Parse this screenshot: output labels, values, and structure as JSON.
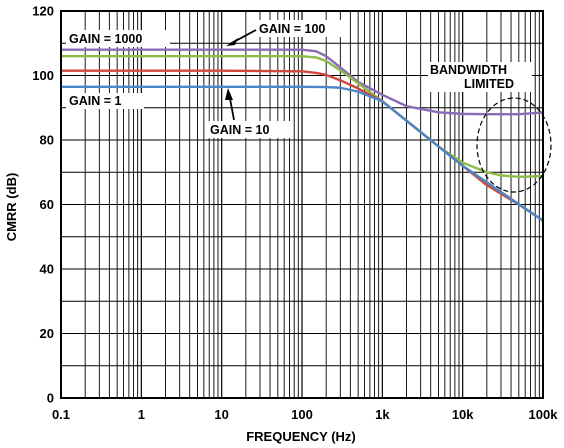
{
  "chart_data": {
    "type": "line",
    "xscale": "log",
    "xlabel": "FREQUENCY (Hz)",
    "ylabel": "CMRR (dB)",
    "xlim": [
      0.1,
      100000
    ],
    "ylim": [
      0,
      120
    ],
    "xticks": [
      "0.1",
      "1",
      "10",
      "100",
      "1k",
      "10k",
      "100k"
    ],
    "yticks": [
      "0",
      "20",
      "40",
      "60",
      "80",
      "100",
      "120"
    ],
    "grid": true,
    "colors": {
      "gain_1000": "#8a6bb5",
      "gain_100": "#8dbb4a",
      "gain_10": "#d0473c",
      "gain_1": "#4a86c8"
    },
    "series": [
      {
        "name": "GAIN = 1000",
        "color": "#8a6bb5",
        "x": [
          0.1,
          1,
          10,
          100,
          150,
          200,
          300,
          500,
          1000,
          2000,
          5000,
          10000,
          20000,
          50000,
          100000
        ],
        "y": [
          108,
          108,
          108,
          108,
          107.5,
          106,
          102.5,
          98,
          94,
          90.5,
          88.6,
          88.1,
          88,
          88,
          88.5
        ]
      },
      {
        "name": "GAIN = 100",
        "color": "#8dbb4a",
        "x": [
          0.1,
          1,
          10,
          100,
          150,
          200,
          300,
          500,
          1000,
          2000,
          5000,
          10000,
          20000,
          30000,
          50000,
          100000
        ],
        "y": [
          106,
          106,
          106,
          106,
          105.6,
          104.5,
          101.6,
          97.6,
          92,
          86,
          78,
          73,
          70,
          69,
          68.6,
          68.8
        ]
      },
      {
        "name": "GAIN = 10",
        "color": "#d0473c",
        "x": [
          0.1,
          1,
          10,
          100,
          150,
          200,
          300,
          500,
          1000,
          2000,
          5000,
          10000,
          20000,
          50000,
          100000
        ],
        "y": [
          101.5,
          101.5,
          101.5,
          101.3,
          100.8,
          100.2,
          98.5,
          96,
          92,
          86,
          78,
          72,
          66,
          60,
          55
        ]
      },
      {
        "name": "GAIN = 1",
        "color": "#4a86c8",
        "x": [
          0.1,
          1,
          10,
          100,
          200,
          300,
          500,
          1000,
          2000,
          5000,
          10000,
          100000
        ],
        "y": [
          96.5,
          96.5,
          96.5,
          96.5,
          96.4,
          96.2,
          95,
          92,
          86,
          78,
          72,
          55
        ]
      }
    ],
    "annotations": {
      "gain_1000": "GAIN = 1000",
      "gain_100": "GAIN = 100",
      "gain_10": "GAIN = 10",
      "gain_1": "GAIN = 1",
      "bandwidth_line1": "BANDWIDTH",
      "bandwidth_line2": "LIMITED"
    }
  }
}
